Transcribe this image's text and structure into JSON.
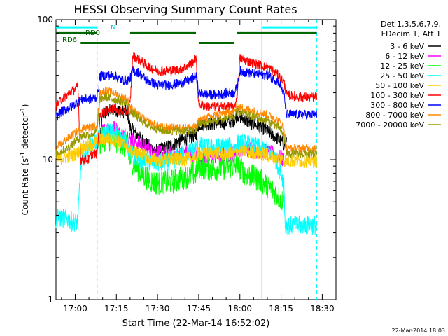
{
  "chart_data": {
    "type": "line",
    "title": "HESSI Observing Summary Count Rates",
    "xlabel": "Start Time (22-Mar-14 16:52:02)",
    "ylabel_main": "Count Rate (s",
    "ylabel_sup1": "-1",
    "ylabel_mid": " detector",
    "ylabel_sup2": "-1",
    "ylabel_end": ")",
    "yscale": "log",
    "ylim": [
      1,
      100
    ],
    "xlim_minutes": [
      -7,
      95
    ],
    "xticks": [
      {
        "m": 0,
        "label": "17:00"
      },
      {
        "m": 15,
        "label": "17:15"
      },
      {
        "m": 30,
        "label": "17:30"
      },
      {
        "m": 45,
        "label": "17:45"
      },
      {
        "m": 60,
        "label": "18:00"
      },
      {
        "m": 75,
        "label": "18:15"
      },
      {
        "m": 90,
        "label": "18:30"
      }
    ],
    "yticks": [
      {
        "v": 1,
        "label": "1"
      },
      {
        "v": 10,
        "label": "10"
      },
      {
        "v": 100,
        "label": "100"
      }
    ],
    "legend": {
      "header1": "Det 1,3,5,6,7,9,",
      "header2": "FDecim 1, Att 1",
      "placement": "right"
    },
    "time_x_unit": "minutes after 17:00",
    "series": [
      {
        "name": "3 - 6 keV",
        "color": "#000000",
        "noise": 0.05,
        "points": [
          [
            9,
            13
          ],
          [
            10,
            21
          ],
          [
            14,
            23
          ],
          [
            17,
            22
          ],
          [
            19,
            22
          ],
          [
            20,
            17
          ],
          [
            24,
            14
          ],
          [
            28,
            12
          ],
          [
            30,
            11.5
          ],
          [
            32,
            12
          ],
          [
            36,
            13
          ],
          [
            40,
            14
          ],
          [
            44,
            15
          ],
          [
            45,
            18
          ],
          [
            50,
            18
          ],
          [
            55,
            18.5
          ],
          [
            58,
            19
          ],
          [
            59,
            21
          ],
          [
            62,
            19
          ],
          [
            68,
            17
          ],
          [
            72,
            15
          ],
          [
            74,
            14
          ],
          [
            76,
            13
          ],
          [
            77,
            13
          ]
        ]
      },
      {
        "name": "6 - 12 keV",
        "color": "#ff00ff",
        "noise": 0.06,
        "points": [
          [
            9,
            14
          ],
          [
            10,
            16
          ],
          [
            14,
            17
          ],
          [
            17,
            15
          ],
          [
            19,
            15
          ],
          [
            20,
            14
          ],
          [
            24,
            13
          ],
          [
            28,
            11.5
          ],
          [
            32,
            11
          ],
          [
            36,
            11
          ],
          [
            40,
            11
          ],
          [
            44,
            11
          ],
          [
            45,
            10
          ],
          [
            50,
            10.5
          ],
          [
            55,
            11
          ],
          [
            58,
            11
          ],
          [
            59,
            12
          ],
          [
            62,
            12
          ],
          [
            68,
            11.5
          ],
          [
            72,
            11
          ],
          [
            74,
            10.5
          ],
          [
            76,
            10
          ]
        ]
      },
      {
        "name": "12 - 25 keV",
        "color": "#00ff00",
        "noise": 0.09,
        "points": [
          [
            9,
            13
          ],
          [
            10,
            14
          ],
          [
            14,
            14
          ],
          [
            17,
            13
          ],
          [
            19,
            12
          ],
          [
            20,
            10
          ],
          [
            24,
            8
          ],
          [
            28,
            7
          ],
          [
            30,
            6.8
          ],
          [
            32,
            6.9
          ],
          [
            36,
            7
          ],
          [
            40,
            7.5
          ],
          [
            44,
            8
          ],
          [
            45,
            9
          ],
          [
            50,
            8.5
          ],
          [
            55,
            8.8
          ],
          [
            58,
            9
          ],
          [
            59,
            9
          ],
          [
            62,
            8
          ],
          [
            68,
            7
          ],
          [
            72,
            6
          ],
          [
            74,
            5.5
          ],
          [
            76,
            5
          ]
        ]
      },
      {
        "name": "25 - 50 keV",
        "color": "#00ffff",
        "noise": 0.07,
        "points": [
          [
            -7,
            3.8
          ],
          [
            -3,
            3.8
          ],
          [
            -1,
            3.6
          ],
          [
            1,
            3.6
          ],
          [
            2,
            9
          ],
          [
            4,
            12
          ],
          [
            6,
            13
          ],
          [
            9,
            14
          ],
          [
            10,
            15
          ],
          [
            14,
            16
          ],
          [
            17,
            14
          ],
          [
            19,
            13
          ],
          [
            20,
            11
          ],
          [
            24,
            10
          ],
          [
            28,
            9.5
          ],
          [
            32,
            9.5
          ],
          [
            36,
            10
          ],
          [
            40,
            11
          ],
          [
            44,
            12
          ],
          [
            45,
            12.5
          ],
          [
            50,
            12
          ],
          [
            55,
            12.5
          ],
          [
            58,
            12
          ],
          [
            59,
            13
          ],
          [
            62,
            13
          ],
          [
            68,
            12
          ],
          [
            72,
            11
          ],
          [
            74,
            9
          ],
          [
            76,
            7
          ],
          [
            76.5,
            3.4
          ],
          [
            80,
            3.4
          ],
          [
            85,
            3.4
          ],
          [
            88,
            3.4
          ]
        ]
      },
      {
        "name": "50 - 100 keV",
        "color": "#ffcc00",
        "noise": 0.05,
        "points": [
          [
            -7,
            10
          ],
          [
            -3,
            10.5
          ],
          [
            0,
            11
          ],
          [
            1,
            11
          ],
          [
            2,
            12
          ],
          [
            4,
            12.5
          ],
          [
            6,
            12.5
          ],
          [
            8,
            14
          ],
          [
            10,
            14
          ],
          [
            14,
            14
          ],
          [
            17,
            13
          ],
          [
            19,
            12.5
          ],
          [
            20,
            11.5
          ],
          [
            24,
            11
          ],
          [
            28,
            10
          ],
          [
            32,
            10
          ],
          [
            36,
            10
          ],
          [
            40,
            10
          ],
          [
            44,
            10.5
          ],
          [
            45,
            11
          ],
          [
            50,
            11
          ],
          [
            55,
            11
          ],
          [
            58,
            11
          ],
          [
            59,
            11.5
          ],
          [
            62,
            11.5
          ],
          [
            68,
            11
          ],
          [
            72,
            10.5
          ],
          [
            76,
            10
          ],
          [
            77,
            9.8
          ],
          [
            85,
            9.8
          ],
          [
            88,
            9.8
          ]
        ]
      },
      {
        "name": "100 - 300 keV",
        "color": "#ff0000",
        "noise": 0.035,
        "points": [
          [
            -7,
            24
          ],
          [
            -5,
            27
          ],
          [
            -3,
            29
          ],
          [
            -1,
            31
          ],
          [
            1,
            33
          ],
          [
            2,
            10
          ],
          [
            5,
            10
          ],
          [
            6,
            11
          ],
          [
            8,
            11
          ],
          [
            9,
            20
          ],
          [
            10,
            22
          ],
          [
            14,
            23
          ],
          [
            17,
            22
          ],
          [
            19,
            22
          ],
          [
            20,
            25
          ],
          [
            21,
            55
          ],
          [
            23,
            52
          ],
          [
            26,
            47
          ],
          [
            30,
            43
          ],
          [
            34,
            43
          ],
          [
            38,
            44
          ],
          [
            42,
            48
          ],
          [
            44,
            53
          ],
          [
            45,
            25
          ],
          [
            48,
            24
          ],
          [
            52,
            24
          ],
          [
            56,
            24
          ],
          [
            58,
            23.5
          ],
          [
            59,
            29
          ],
          [
            60,
            53
          ],
          [
            62,
            51
          ],
          [
            66,
            48
          ],
          [
            70,
            46
          ],
          [
            72,
            43
          ],
          [
            74,
            40
          ],
          [
            76,
            36
          ],
          [
            77,
            29
          ],
          [
            82,
            28
          ],
          [
            88,
            28
          ]
        ]
      },
      {
        "name": "300 - 800 keV",
        "color": "#0000ff",
        "noise": 0.035,
        "points": [
          [
            -7,
            20
          ],
          [
            -5,
            22
          ],
          [
            -3,
            23
          ],
          [
            -1,
            24
          ],
          [
            1,
            26
          ],
          [
            3,
            27
          ],
          [
            6,
            27
          ],
          [
            8,
            28
          ],
          [
            9,
            39
          ],
          [
            11,
            40
          ],
          [
            14,
            40
          ],
          [
            17,
            37
          ],
          [
            19,
            37
          ],
          [
            20,
            38
          ],
          [
            21,
            43
          ],
          [
            23,
            42
          ],
          [
            26,
            37
          ],
          [
            30,
            34
          ],
          [
            34,
            34
          ],
          [
            38,
            35
          ],
          [
            42,
            37
          ],
          [
            44,
            40
          ],
          [
            45,
            30
          ],
          [
            48,
            29
          ],
          [
            52,
            29
          ],
          [
            56,
            30
          ],
          [
            58,
            30
          ],
          [
            59,
            33
          ],
          [
            60,
            43
          ],
          [
            62,
            42
          ],
          [
            66,
            41
          ],
          [
            70,
            40
          ],
          [
            72,
            38
          ],
          [
            74,
            36
          ],
          [
            76,
            30
          ],
          [
            77,
            21
          ],
          [
            82,
            21
          ],
          [
            88,
            21
          ]
        ]
      },
      {
        "name": "800 - 7000 keV",
        "color": "#ff8800",
        "noise": 0.03,
        "points": [
          [
            -7,
            12
          ],
          [
            -5,
            13
          ],
          [
            -3,
            14
          ],
          [
            -1,
            15
          ],
          [
            1,
            16
          ],
          [
            3,
            17
          ],
          [
            6,
            17
          ],
          [
            8,
            18
          ],
          [
            9,
            30
          ],
          [
            11,
            31
          ],
          [
            14,
            30
          ],
          [
            17,
            28
          ],
          [
            19,
            27
          ],
          [
            20,
            24
          ],
          [
            24,
            20
          ],
          [
            28,
            18
          ],
          [
            32,
            17
          ],
          [
            36,
            17
          ],
          [
            40,
            17
          ],
          [
            44,
            17
          ],
          [
            45,
            19
          ],
          [
            48,
            20
          ],
          [
            52,
            21
          ],
          [
            56,
            22
          ],
          [
            58,
            22
          ],
          [
            59,
            24
          ],
          [
            62,
            23
          ],
          [
            66,
            22
          ],
          [
            70,
            21
          ],
          [
            72,
            20
          ],
          [
            74,
            19
          ],
          [
            76,
            17
          ],
          [
            77,
            12
          ],
          [
            82,
            12
          ],
          [
            88,
            12
          ]
        ]
      },
      {
        "name": "7000 - 20000 keV",
        "color": "#999900",
        "noise": 0.03,
        "points": [
          [
            -7,
            11
          ],
          [
            -5,
            11.5
          ],
          [
            -3,
            12
          ],
          [
            -1,
            13
          ],
          [
            1,
            14
          ],
          [
            3,
            15
          ],
          [
            6,
            15
          ],
          [
            8,
            16
          ],
          [
            9,
            27
          ],
          [
            11,
            28
          ],
          [
            14,
            27
          ],
          [
            17,
            26
          ],
          [
            19,
            25
          ],
          [
            20,
            22
          ],
          [
            24,
            19
          ],
          [
            28,
            17
          ],
          [
            32,
            16
          ],
          [
            36,
            16
          ],
          [
            40,
            16
          ],
          [
            44,
            16
          ],
          [
            45,
            18
          ],
          [
            48,
            18.5
          ],
          [
            52,
            19
          ],
          [
            56,
            20
          ],
          [
            58,
            20
          ],
          [
            59,
            22
          ],
          [
            62,
            21
          ],
          [
            66,
            20
          ],
          [
            70,
            19
          ],
          [
            72,
            18
          ],
          [
            74,
            17
          ],
          [
            76,
            15
          ],
          [
            77,
            11
          ],
          [
            82,
            11
          ],
          [
            88,
            11
          ]
        ]
      }
    ],
    "bars": [
      {
        "label": "RD0",
        "color": "#00ffff",
        "y_value": 88,
        "start": -7,
        "end": 8
      },
      {
        "label": "",
        "color": "#00ffff",
        "y_value": 88,
        "start": 68,
        "end": 88
      },
      {
        "label": "RD6",
        "color": "#006600",
        "y_value": 68,
        "start": 2,
        "end": 20
      },
      {
        "label": "",
        "color": "#006600",
        "y_value": 80,
        "start": -7,
        "end": 8
      },
      {
        "label": "",
        "color": "#006600",
        "y_value": 80,
        "start": 20,
        "end": 44
      },
      {
        "label": "",
        "color": "#006600",
        "y_value": 68,
        "start": 45,
        "end": 58
      },
      {
        "label": "",
        "color": "#006600",
        "y_value": 80,
        "start": 59,
        "end": 88
      }
    ],
    "n_marker": {
      "label": "N",
      "m": 11,
      "y_value": 88
    },
    "vlines": [
      {
        "m": 8,
        "color": "#00ffff",
        "style": "dashed"
      },
      {
        "m": 68,
        "color": "#00ffff",
        "style": "solid"
      },
      {
        "m": 88,
        "color": "#00ffff",
        "style": "dashed"
      }
    ]
  },
  "footer": {
    "timestamp": "22-Mar-2014 18:03"
  }
}
